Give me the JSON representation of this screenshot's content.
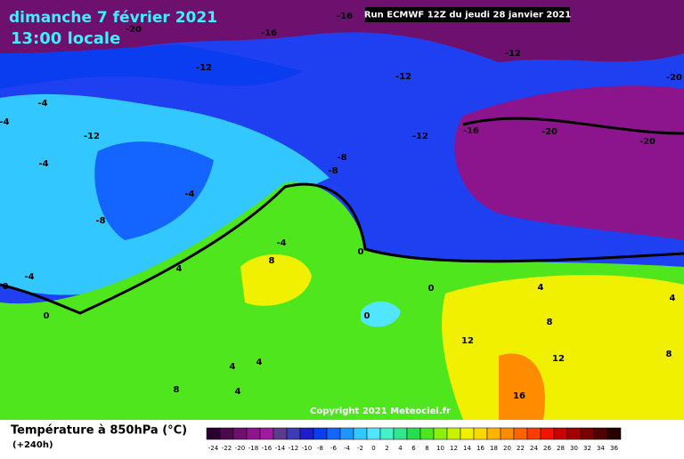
{
  "header": {
    "date": "dimanche 7 février 2021",
    "time": "13:00 locale",
    "run": "Run ECMWF 12Z du jeudi 28 janvier 2021"
  },
  "map_labels": [
    "-20",
    "-16",
    "-16",
    "-12",
    "-12",
    "-12",
    "-20",
    "-4",
    "-4",
    "-12",
    "-12",
    "-16",
    "-20",
    "-20",
    "-4",
    "-8",
    "-8",
    "-4",
    "-8",
    "-4",
    "8",
    "0",
    "4",
    "-4",
    "0",
    "0",
    "0",
    "0",
    "4",
    "4",
    "8",
    "12",
    "12",
    "8",
    "4",
    "4",
    "8",
    "4",
    "16"
  ],
  "copyright": "Copyright 2021 Meteociel.fr",
  "legend": {
    "title": "Température à 850hPa (°C)",
    "subtitle": "(+240h)",
    "labels": [
      -24,
      -22,
      -20,
      -18,
      -16,
      -14,
      -12,
      -10,
      -8,
      -6,
      -4,
      -2,
      0,
      2,
      4,
      6,
      8,
      10,
      12,
      14,
      16,
      18,
      20,
      22,
      24,
      26,
      28,
      30,
      32,
      34,
      36
    ],
    "colors": [
      "#2a0030",
      "#4b0a4b",
      "#6e106e",
      "#8c148c",
      "#a01aa0",
      "#5a3c8c",
      "#3c3cb4",
      "#1e1ec8",
      "#0a3cf0",
      "#1464ff",
      "#1e96ff",
      "#32c8ff",
      "#50e6ff",
      "#46f0c8",
      "#32e68c",
      "#28dc50",
      "#50e61e",
      "#8cf00a",
      "#c8f000",
      "#f0f000",
      "#ffd700",
      "#ffb400",
      "#ff8c00",
      "#ff6400",
      "#ff3c00",
      "#f01400",
      "#c80000",
      "#a00000",
      "#780000",
      "#500000",
      "#280000"
    ]
  }
}
